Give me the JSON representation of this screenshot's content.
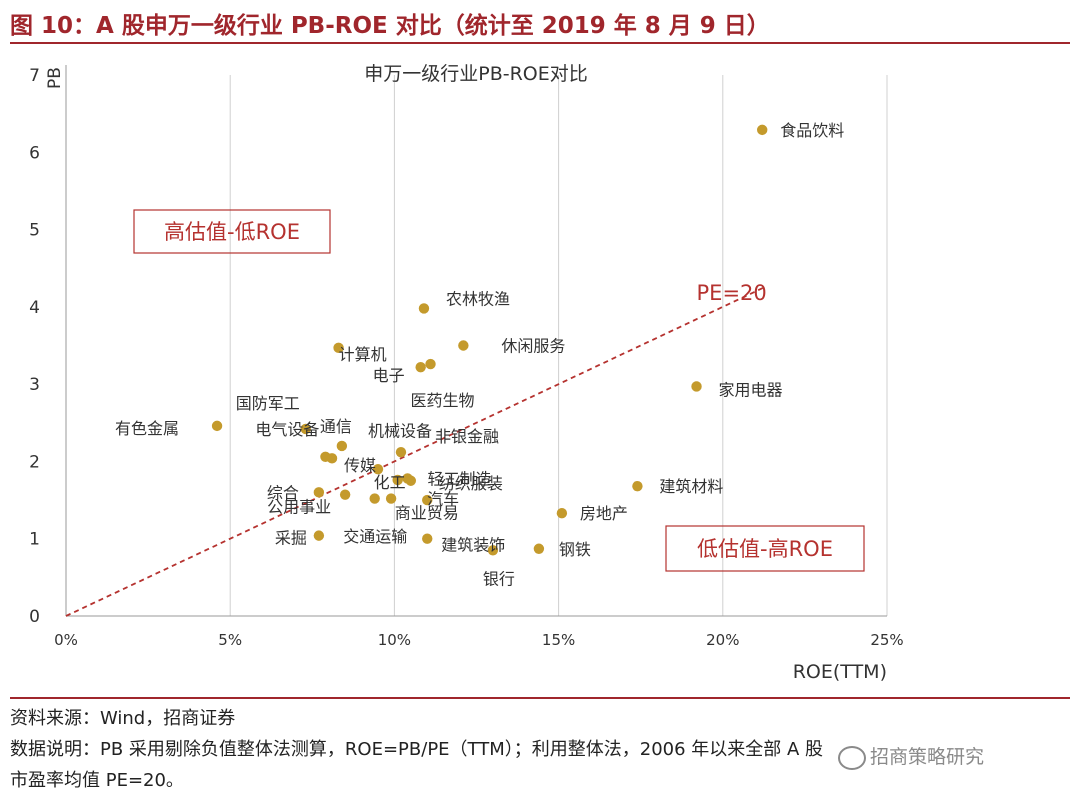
{
  "figure": {
    "title": "图 10：A 股申万一级行业 PB-ROE 对比（统计至 2019 年 8 月 9 日）",
    "source": "资料来源：Wind，招商证券",
    "note_line1": "数据说明：PB 采用剔除负值整体法测算，ROE=PB/PE（TTM）；利用整体法，2006 年以来全部 A 股",
    "note_line2": "市盈率均值 PE=20。",
    "watermark": "招商策略研究",
    "accent_color": "#a0262c"
  },
  "chart_data": {
    "type": "scatter",
    "title": "申万一级行业PB-ROE对比",
    "xlabel": "ROE(TTM)",
    "ylabel": "PB",
    "xlim": [
      0,
      0.25
    ],
    "ylim": [
      0,
      7
    ],
    "x_ticks": [
      "0%",
      "5%",
      "10%",
      "15%",
      "20%",
      "25%"
    ],
    "y_ticks": [
      "0",
      "1",
      "2",
      "3",
      "4",
      "5",
      "6",
      "7"
    ],
    "grid": "vertical",
    "point_color": "#c49a2c",
    "series": [
      {
        "points": [
          {
            "name": "食品饮料",
            "x": 0.212,
            "y": 6.29
          },
          {
            "name": "农林牧渔",
            "x": 0.109,
            "y": 3.98
          },
          {
            "name": "休闲服务",
            "x": 0.121,
            "y": 3.5
          },
          {
            "name": "计算机",
            "x": 0.083,
            "y": 3.47
          },
          {
            "name": "电子",
            "x": 0.108,
            "y": 3.22
          },
          {
            "name": "医药生物",
            "x": 0.111,
            "y": 3.26
          },
          {
            "name": "家用电器",
            "x": 0.192,
            "y": 2.97
          },
          {
            "name": "国防军工",
            "x": 0.073,
            "y": 2.42
          },
          {
            "name": "有色金属",
            "x": 0.046,
            "y": 2.46
          },
          {
            "name": "通信",
            "x": 0.084,
            "y": 2.2
          },
          {
            "name": "电气设备",
            "x": 0.079,
            "y": 2.06
          },
          {
            "name": "机械设备",
            "x": 0.081,
            "y": 2.04
          },
          {
            "name": "非银金融",
            "x": 0.102,
            "y": 2.12
          },
          {
            "name": "传媒",
            "x": 0.095,
            "y": 1.9
          },
          {
            "name": "轻工制造",
            "x": 0.104,
            "y": 1.78
          },
          {
            "name": "化工",
            "x": 0.101,
            "y": 1.76
          },
          {
            "name": "纺织服装",
            "x": 0.105,
            "y": 1.75
          },
          {
            "name": "建筑材料",
            "x": 0.174,
            "y": 1.68
          },
          {
            "name": "综合",
            "x": 0.077,
            "y": 1.6
          },
          {
            "name": "公用事业",
            "x": 0.085,
            "y": 1.57
          },
          {
            "name": "商业贸易",
            "x": 0.094,
            "y": 1.52
          },
          {
            "name": "汽车",
            "x": 0.099,
            "y": 1.52
          },
          {
            "name": "交通运输",
            "x": 0.11,
            "y": 1.5
          },
          {
            "name": "房地产",
            "x": 0.151,
            "y": 1.33
          },
          {
            "name": "采掘",
            "x": 0.077,
            "y": 1.04
          },
          {
            "name": "建筑装饰",
            "x": 0.11,
            "y": 1.0
          },
          {
            "name": "钢铁",
            "x": 0.144,
            "y": 0.87
          },
          {
            "name": "银行",
            "x": 0.13,
            "y": 0.85
          }
        ]
      }
    ],
    "reference_line": {
      "label": "PE=20",
      "pe": 20
    },
    "annotations": [
      {
        "text": "高估值-低ROE"
      },
      {
        "text": "低估值-高ROE"
      }
    ]
  }
}
